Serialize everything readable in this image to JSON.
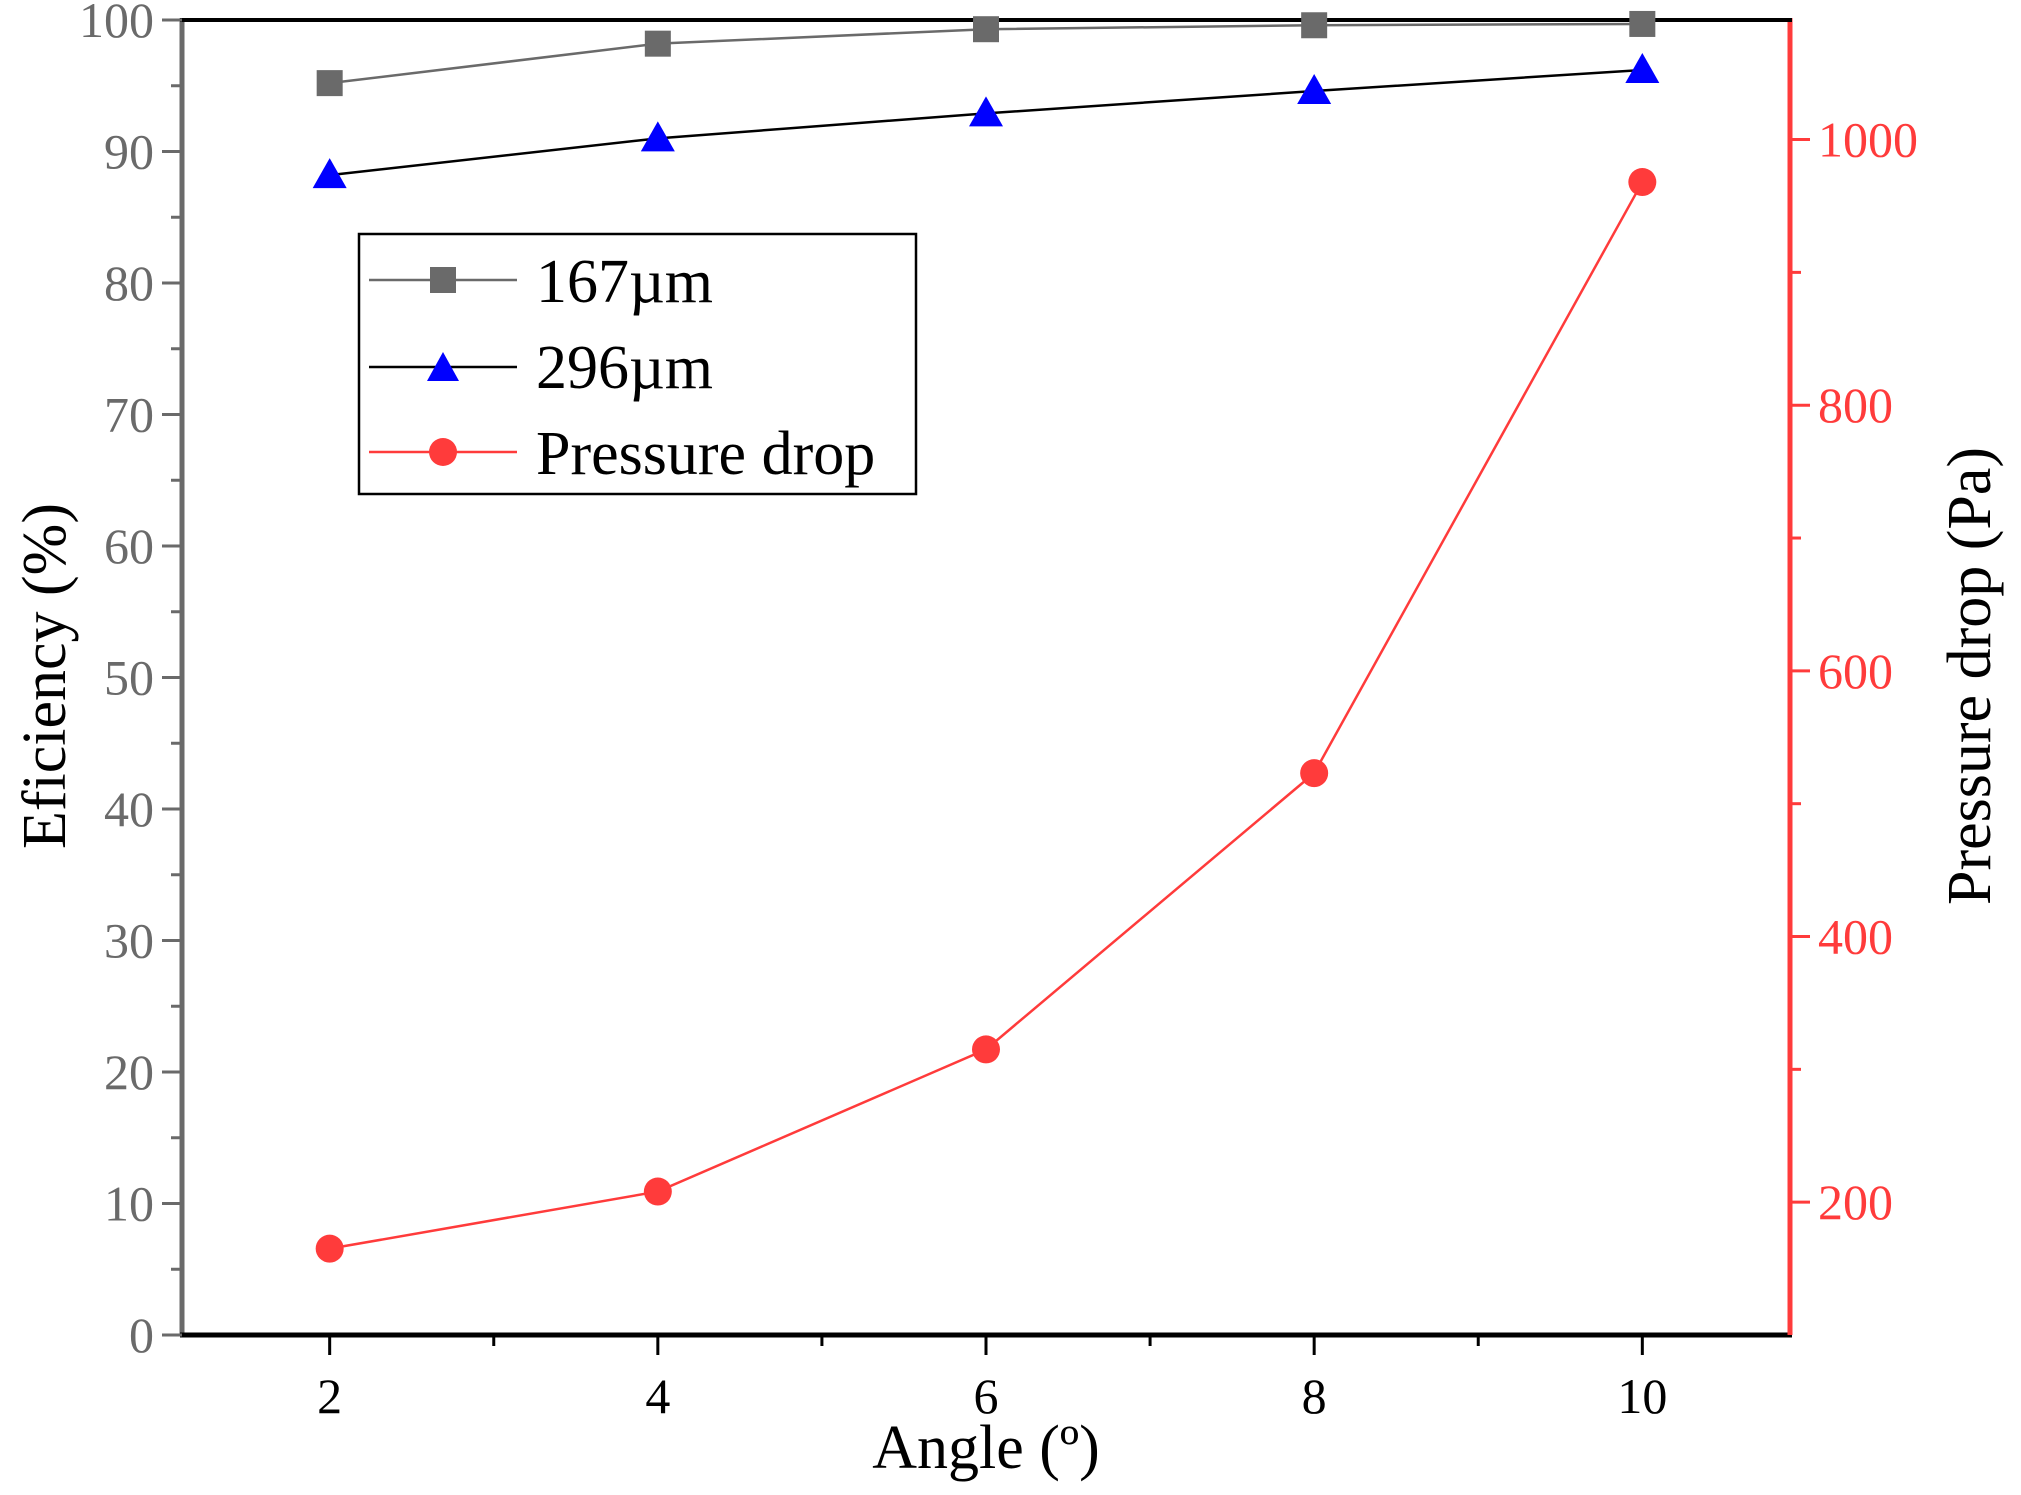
{
  "chart_data": {
    "type": "line",
    "title": "",
    "xlabel": "Angle (º)",
    "ylabel_left": "Eficiency (%)",
    "ylabel_right": "Pressure drop (Pa)",
    "x": [
      2,
      4,
      6,
      8,
      10
    ],
    "xlim": [
      1.1,
      10.9
    ],
    "xticks": [
      2,
      4,
      6,
      8,
      10
    ],
    "ylim_left": [
      0,
      100
    ],
    "yticks_left": [
      0,
      10,
      20,
      30,
      40,
      50,
      60,
      70,
      80,
      90,
      100
    ],
    "ylim_right": [
      100,
      1090
    ],
    "yticks_right": [
      200,
      400,
      600,
      800,
      1000
    ],
    "grid": false,
    "legend_position": "top-left",
    "series": [
      {
        "name": "167µm",
        "axis": "left",
        "marker": "square",
        "color": "#6a6a6a",
        "values": [
          95.2,
          98.2,
          99.3,
          99.6,
          99.7
        ]
      },
      {
        "name": "296µm",
        "axis": "left",
        "marker": "triangle",
        "color": "#0000ff",
        "line_color": "#000000",
        "values": [
          88.2,
          91.0,
          92.9,
          94.6,
          96.2
        ]
      },
      {
        "name": "Pressure drop",
        "axis": "right",
        "marker": "circle",
        "color": "#ff3b3b",
        "values": [
          165,
          208,
          315,
          523,
          968
        ]
      }
    ]
  }
}
